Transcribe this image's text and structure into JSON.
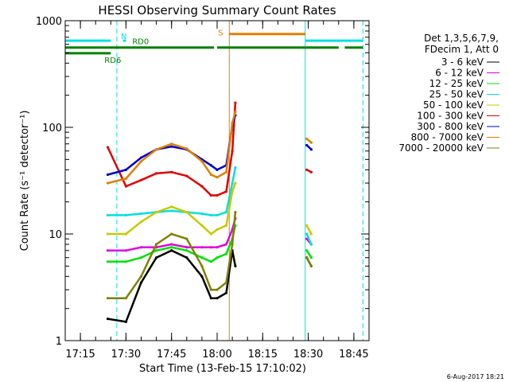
{
  "chart_data": {
    "type": "line",
    "title": "HESSI Observing Summary Count Rates",
    "xlabel": "Start Time (13-Feb-15 17:10:02)",
    "ylabel": "Count Rate (s⁻¹ detector⁻¹)",
    "yscale": "log",
    "ylim": [
      1,
      1000
    ],
    "xlim": [
      "17:10",
      "18:50"
    ],
    "x_ticks": [
      "17:15",
      "17:30",
      "17:45",
      "18:00",
      "18:15",
      "18:30",
      "18:45"
    ],
    "y_ticks": [
      "1",
      "10",
      "100",
      "1000"
    ],
    "grid": false,
    "legend_position": "right",
    "legend_header": [
      "Det 1,3,5,6,7,9,",
      "FDecim 1, Att 0"
    ],
    "footer_date": "6-Aug-2017 18:21",
    "vertical_lines": [
      {
        "x": "17:10",
        "color": "#00e0e0",
        "style": "solid"
      },
      {
        "x": "17:27",
        "color": "#00e0e0",
        "style": "dashed"
      },
      {
        "x": "18:04",
        "color": "#e08000",
        "style": "solid"
      },
      {
        "x": "18:29",
        "color": "#00e0e0",
        "style": "solid"
      },
      {
        "x": "18:48",
        "color": "#00e0e0",
        "style": "dashed"
      }
    ],
    "flag_bars": [
      {
        "label": "N",
        "color": "#00e0e0",
        "y": 650,
        "segments": [
          [
            "17:10",
            "17:25"
          ],
          [
            "17:29",
            "17:30"
          ],
          [
            "18:29",
            "18:48"
          ]
        ]
      },
      {
        "label": "S",
        "color": "#e08000",
        "y": 750,
        "segments": [
          [
            "18:04",
            "18:29"
          ]
        ]
      },
      {
        "label": "RD0",
        "color": "#008000",
        "y": 560,
        "segments": [
          [
            "17:10",
            "17:59"
          ],
          [
            "18:00",
            "18:29"
          ],
          [
            "18:29",
            "18:40"
          ],
          [
            "18:42",
            "18:48"
          ]
        ]
      },
      {
        "label": "RD6",
        "color": "#008000",
        "y": 495,
        "segments": [
          [
            "17:10",
            "17:25"
          ]
        ]
      }
    ],
    "series": [
      {
        "name": "3 - 6 keV",
        "color": "#000000",
        "x": [
          "17:24",
          "17:30",
          "17:35",
          "17:40",
          "17:45",
          "17:50",
          "17:55",
          "17:58",
          "18:00",
          "18:03",
          "18:05",
          "18:06",
          "18:29.5",
          "18:31"
        ],
        "y": [
          1.6,
          1.5,
          3.5,
          6,
          7,
          6,
          4,
          2.5,
          2.5,
          2.8,
          7,
          5,
          6,
          5
        ]
      },
      {
        "name": "6 - 12 keV",
        "color": "#e000e0",
        "x": [
          "17:24",
          "17:30",
          "17:35",
          "17:40",
          "17:45",
          "17:50",
          "17:55",
          "17:58",
          "18:00",
          "18:03",
          "18:05",
          "18:06",
          "18:29.5",
          "18:31"
        ],
        "y": [
          7,
          7,
          7.5,
          7.5,
          8,
          7.5,
          7.5,
          7.5,
          7.5,
          8,
          11,
          14,
          9,
          8
        ]
      },
      {
        "name": "12 - 25 keV",
        "color": "#00e000",
        "x": [
          "17:24",
          "17:30",
          "17:35",
          "17:40",
          "17:45",
          "17:50",
          "17:55",
          "17:58",
          "18:00",
          "18:03",
          "18:05",
          "18:06",
          "18:29.5",
          "18:31"
        ],
        "y": [
          5.5,
          5.5,
          6,
          7,
          7.5,
          7,
          6,
          5.5,
          6,
          6.5,
          9,
          12,
          7,
          6
        ]
      },
      {
        "name": "25 - 50 keV",
        "color": "#00e0e0",
        "x": [
          "17:24",
          "17:30",
          "17:35",
          "17:40",
          "17:45",
          "17:50",
          "17:55",
          "17:58",
          "18:00",
          "18:03",
          "18:05",
          "18:06",
          "18:29.5",
          "18:31"
        ],
        "y": [
          15,
          15,
          15.5,
          16,
          16.5,
          16,
          15.5,
          15,
          15,
          16,
          30,
          42,
          10,
          8
        ]
      },
      {
        "name": "50 - 100 keV",
        "color": "#c8c800",
        "x": [
          "17:24",
          "17:30",
          "17:35",
          "17:40",
          "17:45",
          "17:50",
          "17:55",
          "17:58",
          "18:00",
          "18:03",
          "18:05",
          "18:06",
          "18:29.5",
          "18:31"
        ],
        "y": [
          10,
          10,
          13,
          16,
          18,
          16,
          12,
          10,
          11,
          12,
          25,
          30,
          12,
          10
        ]
      },
      {
        "name": "100 - 300 keV",
        "color": "#e00000",
        "x": [
          "17:24",
          "17:30",
          "17:35",
          "17:40",
          "17:45",
          "17:50",
          "17:55",
          "17:58",
          "18:00",
          "18:03",
          "18:05",
          "18:06",
          "18:29.5",
          "18:31"
        ],
        "y": [
          65,
          28,
          32,
          37,
          38,
          35,
          28,
          23,
          23,
          25,
          60,
          170,
          40,
          38
        ]
      },
      {
        "name": "300 - 800 keV",
        "color": "#0000c8",
        "x": [
          "17:24",
          "17:30",
          "17:35",
          "17:40",
          "17:45",
          "17:50",
          "17:55",
          "17:58",
          "18:00",
          "18:03",
          "18:05",
          "18:06",
          "18:29.5",
          "18:31"
        ],
        "y": [
          36,
          40,
          52,
          62,
          66,
          62,
          50,
          44,
          40,
          44,
          105,
          130,
          68,
          62
        ]
      },
      {
        "name": "800 - 7000 keV",
        "color": "#e08000",
        "x": [
          "17:24",
          "17:30",
          "17:35",
          "17:40",
          "17:45",
          "17:50",
          "17:55",
          "17:58",
          "18:00",
          "18:03",
          "18:05",
          "18:06",
          "18:29.5",
          "18:31"
        ],
        "y": [
          30,
          33,
          48,
          62,
          70,
          63,
          48,
          36,
          34,
          38,
          110,
          140,
          78,
          72
        ]
      },
      {
        "name": "7000 - 20000 keV",
        "color": "#808000",
        "x": [
          "17:24",
          "17:30",
          "17:35",
          "17:40",
          "17:45",
          "17:50",
          "17:55",
          "17:58",
          "18:00",
          "18:03",
          "18:05",
          "18:06",
          "18:29.5",
          "18:31"
        ],
        "y": [
          2.5,
          2.5,
          4,
          8,
          10,
          9,
          5,
          3,
          3,
          3.5,
          8,
          16,
          6,
          5
        ]
      }
    ]
  }
}
